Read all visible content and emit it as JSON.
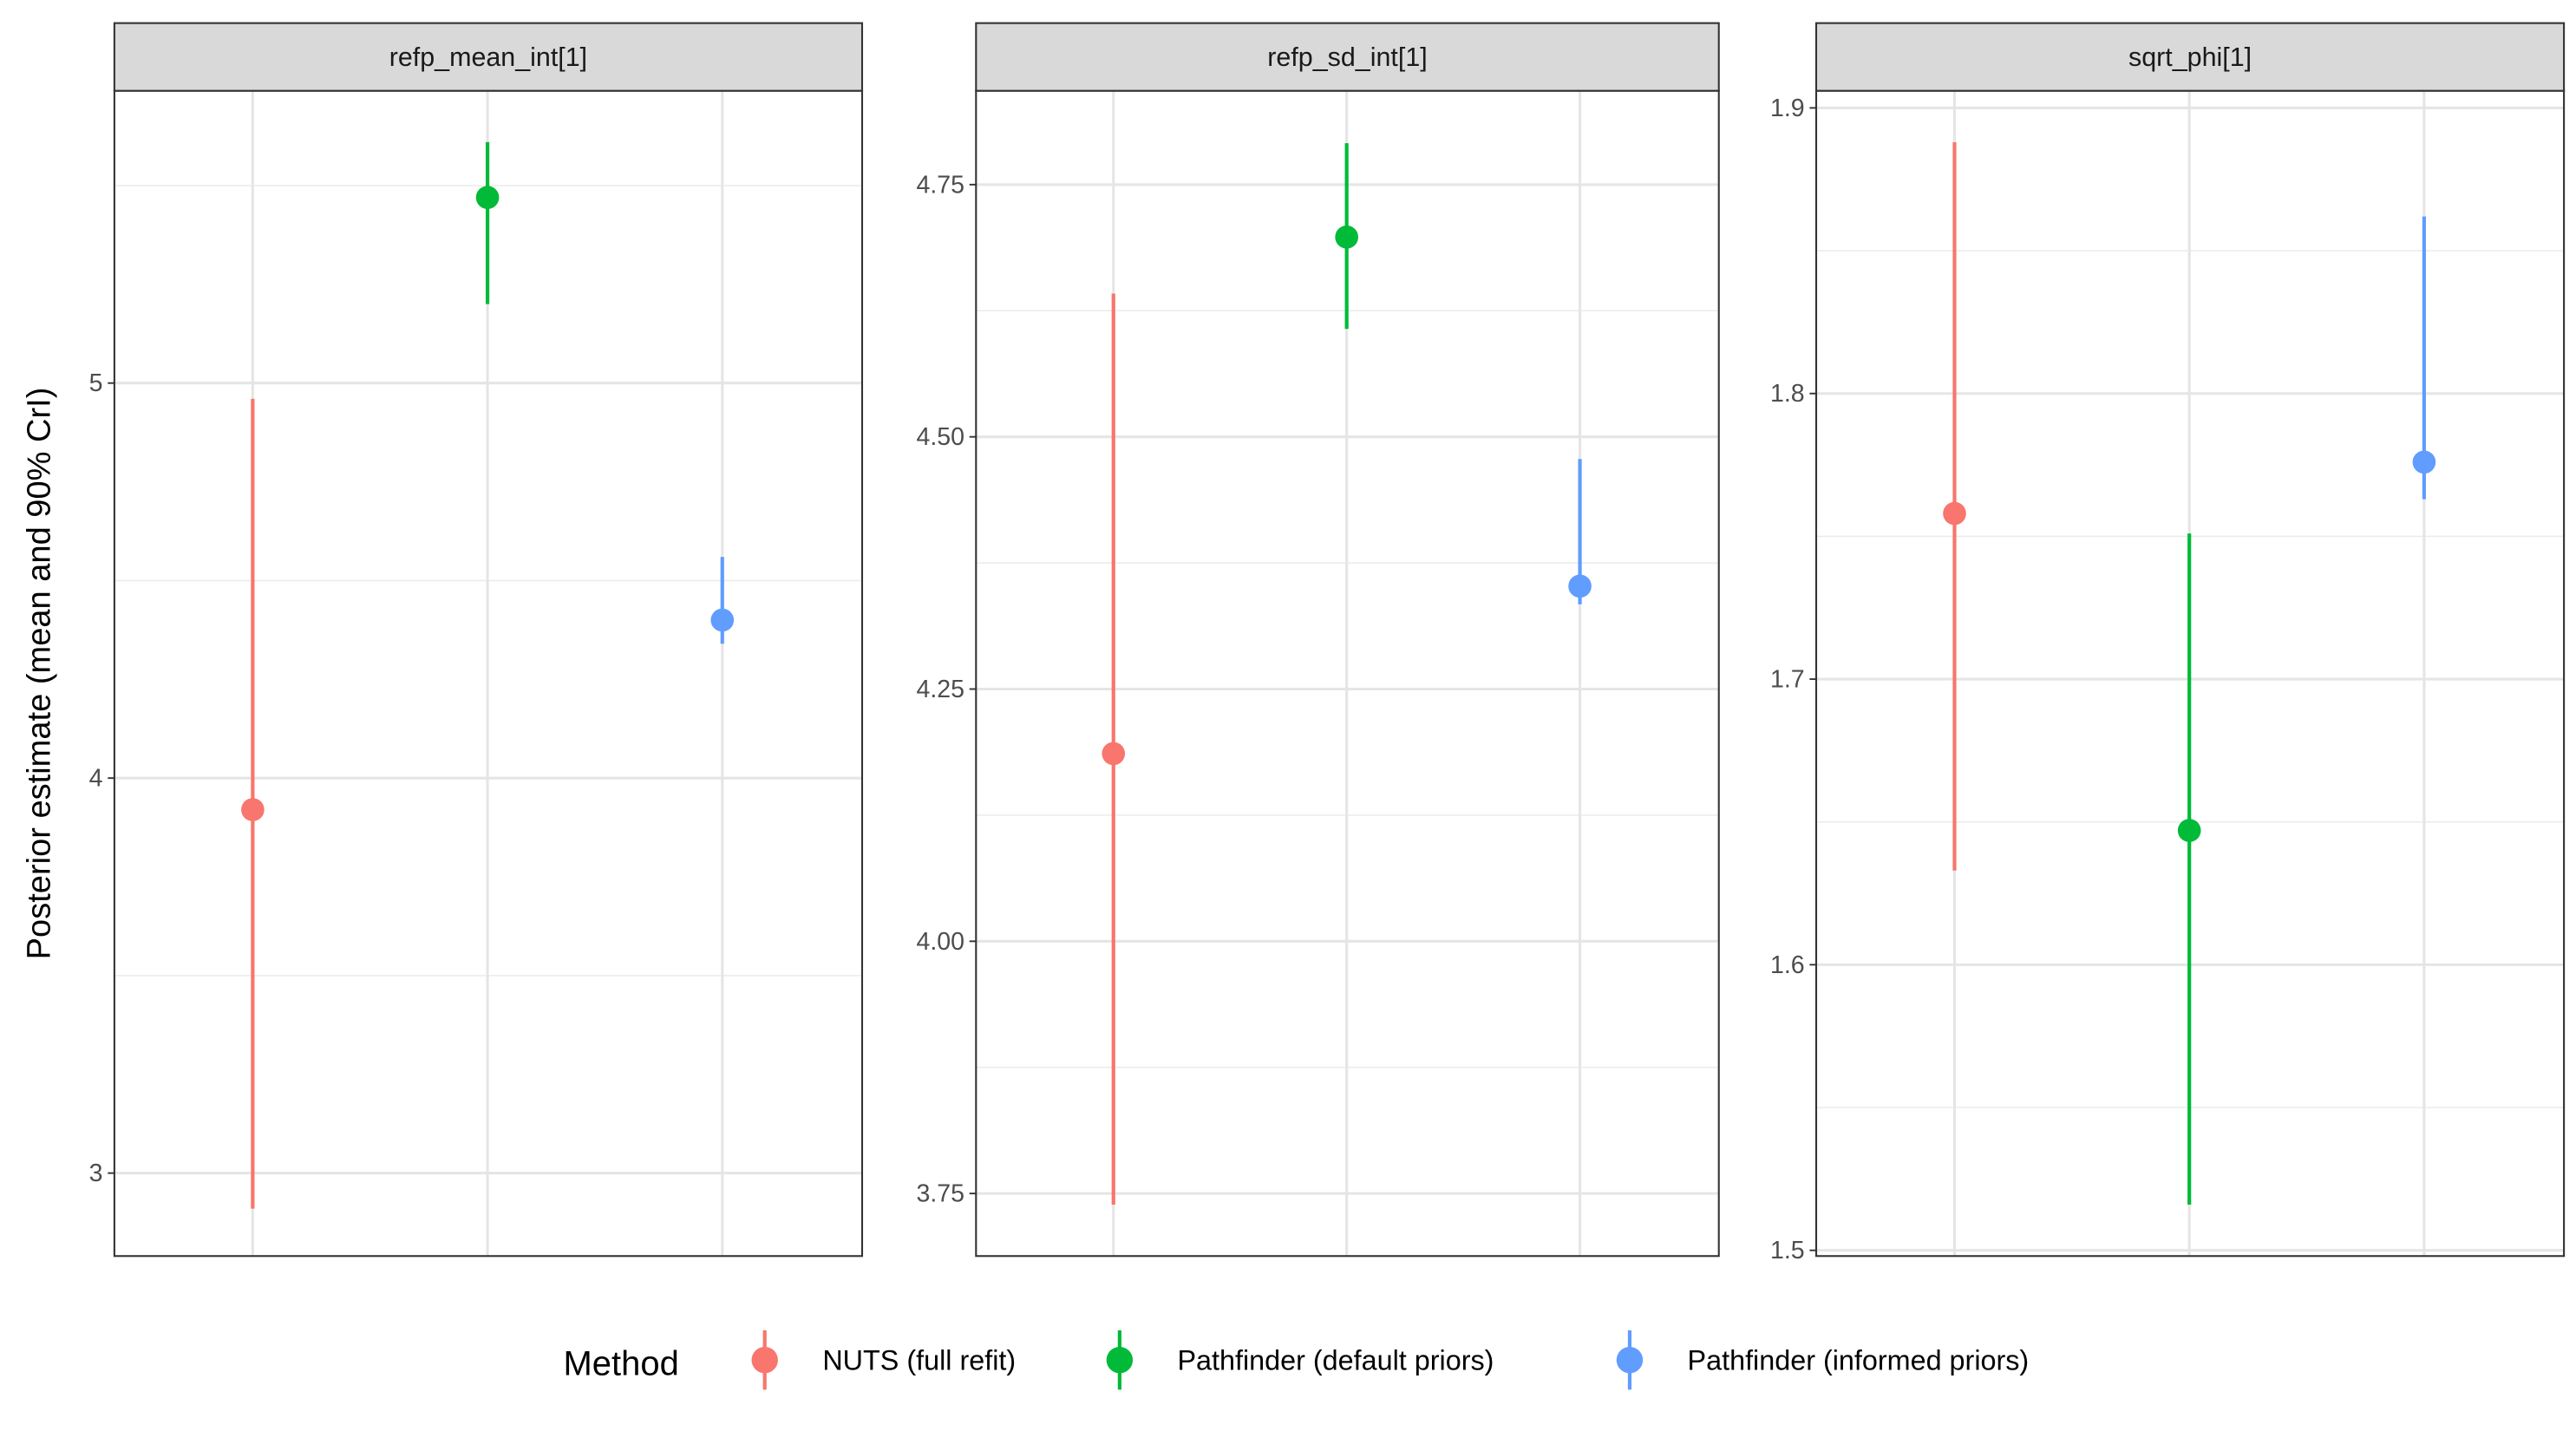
{
  "chart_data": {
    "type": "pointrange",
    "ylabel": "Posterior estimate (mean and 90% CrI)",
    "xlabel": "",
    "grid": true,
    "legend": {
      "title": "Method",
      "position": "bottom"
    },
    "categories": [
      "NUTS (full refit)",
      "Pathfinder (default priors)",
      "Pathfinder (informed priors)"
    ],
    "colors": [
      "#F8766D",
      "#00BA38",
      "#619CFF"
    ],
    "panels": [
      {
        "title": "refp_mean_int[1]",
        "ylim": [
          2.79,
          5.74
        ],
        "yticks": [
          3,
          4,
          5
        ],
        "ytick_labels": [
          "3",
          "4",
          "5"
        ],
        "minor": [
          3.5,
          4.5,
          5.5
        ],
        "points": [
          {
            "method": "NUTS (full refit)",
            "mean": 3.92,
            "lower": 2.91,
            "upper": 4.96
          },
          {
            "method": "Pathfinder (default priors)",
            "mean": 5.47,
            "lower": 5.2,
            "upper": 5.61
          },
          {
            "method": "Pathfinder (informed priors)",
            "mean": 4.4,
            "lower": 4.34,
            "upper": 4.56
          }
        ]
      },
      {
        "title": "refp_sd_int[1]",
        "ylim": [
          3.688,
          4.843
        ],
        "yticks": [
          3.75,
          4.0,
          4.25,
          4.5,
          4.75
        ],
        "ytick_labels": [
          "3.75",
          "4.00",
          "4.25",
          "4.50",
          "4.75"
        ],
        "minor": [
          3.875,
          4.125,
          4.375,
          4.625
        ],
        "points": [
          {
            "method": "NUTS (full refit)",
            "mean": 4.186,
            "lower": 3.739,
            "upper": 4.642
          },
          {
            "method": "Pathfinder (default priors)",
            "mean": 4.698,
            "lower": 4.607,
            "upper": 4.791
          },
          {
            "method": "Pathfinder (informed priors)",
            "mean": 4.352,
            "lower": 4.334,
            "upper": 4.478
          }
        ]
      },
      {
        "title": "sqrt_phi[1]",
        "ylim": [
          1.498,
          1.906
        ],
        "yticks": [
          1.5,
          1.6,
          1.7,
          1.8,
          1.9
        ],
        "ytick_labels": [
          "1.5",
          "1.6",
          "1.7",
          "1.8",
          "1.9"
        ],
        "minor": [
          1.55,
          1.65,
          1.75,
          1.85
        ],
        "points": [
          {
            "method": "NUTS (full refit)",
            "mean": 1.758,
            "lower": 1.633,
            "upper": 1.888
          },
          {
            "method": "Pathfinder (default priors)",
            "mean": 1.647,
            "lower": 1.516,
            "upper": 1.751
          },
          {
            "method": "Pathfinder (informed priors)",
            "mean": 1.776,
            "lower": 1.763,
            "upper": 1.862
          }
        ]
      }
    ]
  }
}
